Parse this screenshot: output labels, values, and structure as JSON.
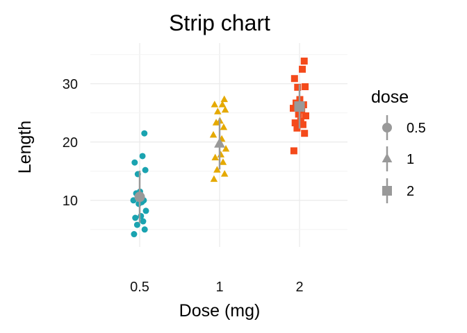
{
  "chart_data": {
    "type": "scatter",
    "title": "Strip chart",
    "xlabel": "Dose (mg)",
    "ylabel": "Length",
    "categories": [
      "0.5",
      "1",
      "2"
    ],
    "ylim": [
      2,
      37
    ],
    "y_ticks": [
      10,
      20,
      30
    ],
    "grid": true,
    "legend": {
      "title": "dose",
      "position": "right",
      "entries": [
        "0.5",
        "1",
        "2"
      ]
    },
    "colors": {
      "0.5": "#1aa3b0",
      "1": "#e5a900",
      "2": "#f44a1b",
      "summary": "#999999"
    },
    "series": [
      {
        "name": "0.5",
        "shape": "circle",
        "values": [
          4.2,
          5.0,
          5.8,
          6.4,
          7.0,
          7.3,
          8.2,
          9.4,
          9.7,
          10.0,
          10.0,
          11.2,
          11.5,
          14.5,
          15.2,
          16.5,
          17.6,
          21.5
        ],
        "mean": 10.6,
        "sd": 4.5
      },
      {
        "name": "1",
        "shape": "triangle",
        "values": [
          13.6,
          14.5,
          15.2,
          16.5,
          17.3,
          17.8,
          18.8,
          19.7,
          20.5,
          21.2,
          22.5,
          23.3,
          23.6,
          25.2,
          25.5,
          26.4,
          26.4,
          27.3
        ],
        "mean": 19.7,
        "sd": 4.4
      },
      {
        "name": "2",
        "shape": "square",
        "values": [
          18.5,
          21.5,
          22.4,
          23.0,
          23.3,
          23.6,
          24.5,
          24.8,
          25.5,
          25.8,
          26.4,
          26.7,
          27.3,
          29.4,
          29.5,
          30.9,
          32.5,
          33.9
        ],
        "mean": 26.1,
        "sd": 3.8
      }
    ]
  }
}
